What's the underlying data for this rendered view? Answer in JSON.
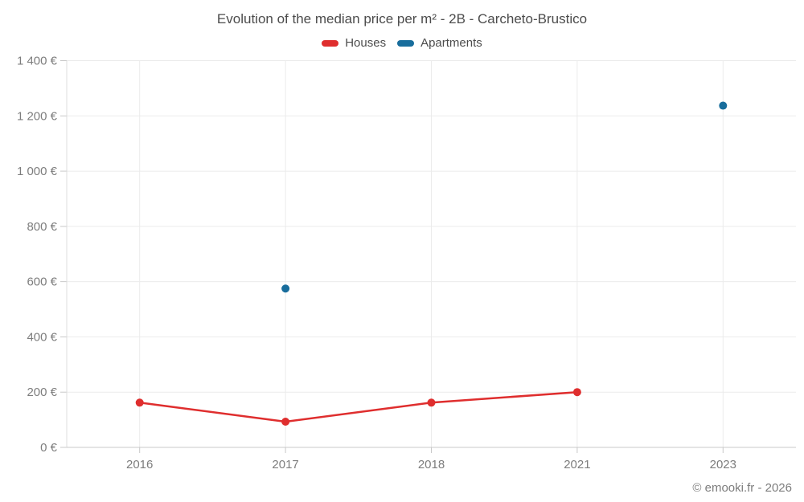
{
  "chart_data": {
    "type": "line",
    "title": "Evolution of the median price per m² - 2B - Carcheto-Brustico",
    "categories": [
      "2016",
      "2017",
      "2018",
      "2021",
      "2023"
    ],
    "series": [
      {
        "name": "Houses",
        "color": "#df2e2e",
        "draw_line": true,
        "values": [
          162,
          93,
          162,
          200,
          null
        ]
      },
      {
        "name": "Apartments",
        "color": "#186d9c",
        "draw_line": false,
        "values": [
          null,
          575,
          null,
          null,
          1237
        ]
      }
    ],
    "ylabel": "",
    "xlabel": "",
    "ylim": [
      0,
      1400
    ],
    "y_tick_step": 200,
    "y_tick_labels": [
      "0 €",
      "200 €",
      "400 €",
      "600 €",
      "800 €",
      "1 000 €",
      "1 200 €",
      "1 400 €"
    ],
    "grid": true,
    "legend_position": "top"
  },
  "footer": {
    "copyright": "© emooki.fr - 2026"
  }
}
